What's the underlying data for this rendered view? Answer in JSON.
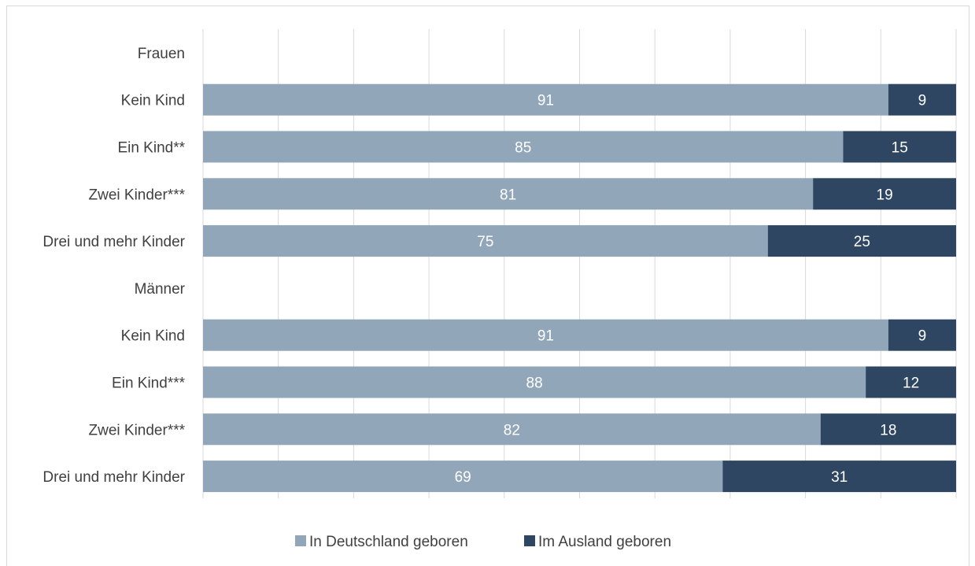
{
  "chart_data": {
    "type": "bar",
    "orientation": "horizontal",
    "stacked": true,
    "categories": [
      "Frauen",
      "Kein Kind",
      "Ein Kind**",
      "Zwei Kinder***",
      "Drei und mehr Kinder",
      "Männer",
      "Kein Kind",
      "Ein Kind***",
      "Zwei Kinder***",
      "Drei und mehr Kinder"
    ],
    "series": [
      {
        "name": "In Deutschland geboren",
        "color": "#92a6ba",
        "values": [
          null,
          91,
          85,
          81,
          75,
          null,
          91,
          88,
          82,
          69
        ]
      },
      {
        "name": "Im  Ausland geboren",
        "color": "#2e4662",
        "values": [
          null,
          9,
          15,
          19,
          25,
          null,
          9,
          12,
          18,
          31
        ]
      }
    ],
    "xlim": [
      0,
      100
    ],
    "grid": true,
    "legend_position": "bottom",
    "title": "",
    "xlabel": "",
    "ylabel": ""
  }
}
